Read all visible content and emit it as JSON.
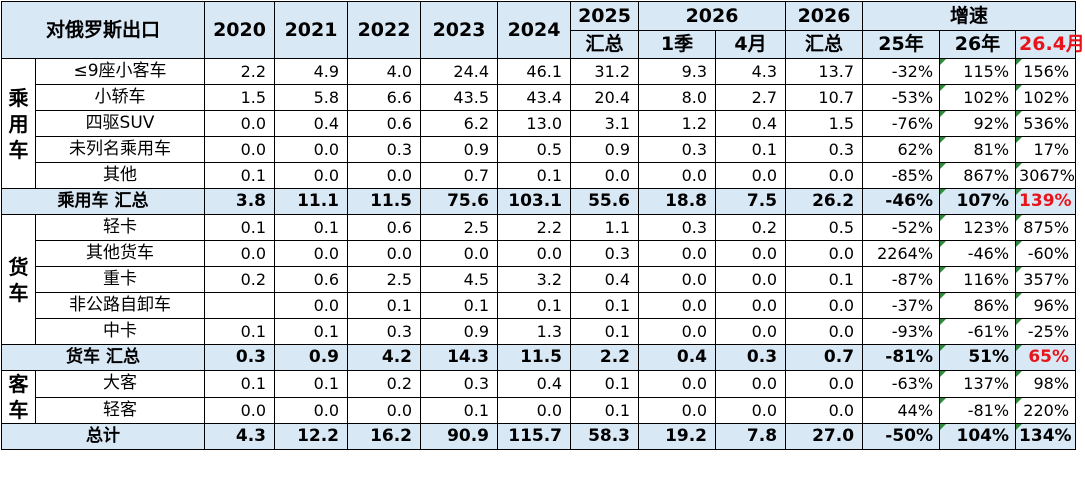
{
  "header": {
    "title": "对俄罗斯出口",
    "years": [
      "2020",
      "2021",
      "2022",
      "2023",
      "2024"
    ],
    "y2025": [
      "2025",
      "汇总"
    ],
    "y2026": "2026",
    "y2026_sub": [
      "1季",
      "4月"
    ],
    "y2026_total": [
      "2026",
      "汇总"
    ],
    "growth": "增速",
    "growth_sub": [
      "25年",
      "26年",
      "26.4月"
    ]
  },
  "groups": [
    {
      "name": [
        "乘",
        "用",
        "车"
      ],
      "rows": [
        {
          "label": "≤9座小客车",
          "v": [
            "2.2",
            "4.9",
            "4.0",
            "24.4",
            "46.1",
            "31.2",
            "9.3",
            "4.3",
            "13.7",
            "-32%",
            "115%",
            "156%"
          ]
        },
        {
          "label": "小轿车",
          "v": [
            "1.5",
            "5.8",
            "6.6",
            "43.5",
            "43.4",
            "20.4",
            "8.0",
            "2.7",
            "10.7",
            "-53%",
            "102%",
            "102%"
          ]
        },
        {
          "label": "四驱SUV",
          "v": [
            "0.0",
            "0.4",
            "0.6",
            "6.2",
            "13.0",
            "3.1",
            "1.2",
            "0.4",
            "1.5",
            "-76%",
            "92%",
            "536%"
          ]
        },
        {
          "label": "未列名乘用车",
          "v": [
            "0.0",
            "0.0",
            "0.3",
            "0.9",
            "0.5",
            "0.9",
            "0.3",
            "0.1",
            "0.3",
            "62%",
            "81%",
            "17%"
          ]
        },
        {
          "label": "其他",
          "v": [
            "0.1",
            "0.0",
            "0.0",
            "0.7",
            "0.1",
            "0.0",
            "0.0",
            "0.0",
            "0.0",
            "-85%",
            "867%",
            "3067%"
          ]
        }
      ],
      "subtotal": {
        "label": "乘用车 汇总",
        "v": [
          "3.8",
          "11.1",
          "11.5",
          "75.6",
          "103.1",
          "55.6",
          "18.8",
          "7.5",
          "26.2",
          "-46%",
          "107%",
          "139%"
        ]
      }
    },
    {
      "name": [
        "货",
        "车"
      ],
      "rows": [
        {
          "label": "轻卡",
          "v": [
            "0.1",
            "0.1",
            "0.6",
            "2.5",
            "2.2",
            "1.1",
            "0.3",
            "0.2",
            "0.5",
            "-52%",
            "123%",
            "875%"
          ]
        },
        {
          "label": "其他货车",
          "v": [
            "0.0",
            "0.0",
            "0.0",
            "0.0",
            "0.0",
            "0.3",
            "0.0",
            "0.0",
            "0.0",
            "2264%",
            "-46%",
            "-60%"
          ]
        },
        {
          "label": "重卡",
          "v": [
            "0.2",
            "0.6",
            "2.5",
            "4.5",
            "3.2",
            "0.4",
            "0.0",
            "0.0",
            "0.1",
            "-87%",
            "116%",
            "357%"
          ]
        },
        {
          "label": "非公路自卸车",
          "v": [
            "",
            "0.0",
            "0.1",
            "0.1",
            "0.1",
            "0.1",
            "0.0",
            "0.0",
            "0.0",
            "-37%",
            "86%",
            "96%"
          ]
        },
        {
          "label": "中卡",
          "v": [
            "0.1",
            "0.1",
            "0.3",
            "0.9",
            "1.3",
            "0.1",
            "0.0",
            "0.0",
            "0.0",
            "-93%",
            "-61%",
            "-25%"
          ]
        }
      ],
      "subtotal": {
        "label": "货车 汇总",
        "v": [
          "0.3",
          "0.9",
          "4.2",
          "14.3",
          "11.5",
          "2.2",
          "0.4",
          "0.3",
          "0.7",
          "-81%",
          "51%",
          "65%"
        ]
      }
    },
    {
      "name": [
        "客",
        "车"
      ],
      "rows": [
        {
          "label": "大客",
          "v": [
            "0.1",
            "0.1",
            "0.2",
            "0.3",
            "0.4",
            "0.1",
            "0.0",
            "0.0",
            "0.0",
            "-63%",
            "137%",
            "98%"
          ]
        },
        {
          "label": "轻客",
          "v": [
            "0.0",
            "0.0",
            "0.0",
            "0.1",
            "0.0",
            "0.1",
            "0.0",
            "0.0",
            "0.0",
            "44%",
            "-81%",
            "220%"
          ]
        }
      ]
    }
  ],
  "total": {
    "label": "总计",
    "v": [
      "4.3",
      "12.2",
      "16.2",
      "90.9",
      "115.7",
      "58.3",
      "19.2",
      "7.8",
      "27.0",
      "-50%",
      "104%",
      "134%"
    ]
  }
}
